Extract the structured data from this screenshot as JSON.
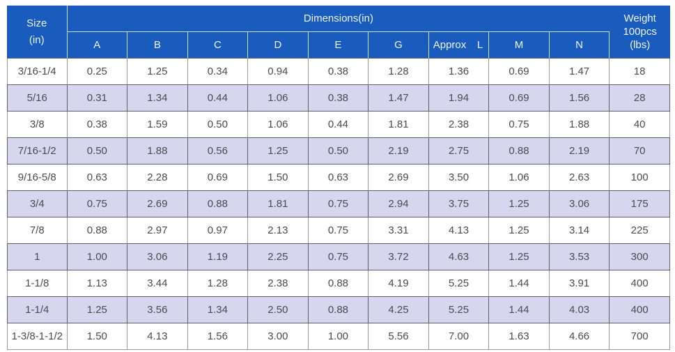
{
  "colors": {
    "header_bg": "#1A5BBE",
    "header_text": "#EFF4FC",
    "alt_row_bg": "#D8D6EF",
    "body_text": "#4A4A50",
    "grid_dark": "#5E5E68",
    "grid_light": "#9A9AA2",
    "page_bg": "#FFFFFF"
  },
  "table": {
    "header": {
      "size_line1": "Size",
      "size_line2": "(in)",
      "dimensions_label": "Dimensions(in)",
      "weight_line1": "Weight",
      "weight_line2": "100pcs",
      "weight_line3": "(lbs)",
      "dimension_columns": [
        {
          "label": "A"
        },
        {
          "label": "B"
        },
        {
          "label": "C"
        },
        {
          "label": "D"
        },
        {
          "label": "E"
        },
        {
          "label": "G"
        },
        {
          "label": "Approx",
          "label_right": "L"
        },
        {
          "label": "M"
        },
        {
          "label": "N"
        }
      ]
    }
  },
  "chart_data": {
    "type": "table",
    "title": "Dimensions(in)",
    "columns": [
      "Size (in)",
      "A",
      "B",
      "C",
      "D",
      "E",
      "G",
      "Approx L",
      "M",
      "N",
      "Weight 100pcs (lbs)"
    ],
    "rows": [
      [
        "3/16-1/4",
        "0.25",
        "1.25",
        "0.34",
        "0.94",
        "0.38",
        "1.28",
        "1.36",
        "0.69",
        "1.47",
        "18"
      ],
      [
        "5/16",
        "0.31",
        "1.34",
        "0.44",
        "1.06",
        "0.38",
        "1.47",
        "1.94",
        "0.69",
        "1.56",
        "28"
      ],
      [
        "3/8",
        "0.38",
        "1.59",
        "0.50",
        "1.06",
        "0.44",
        "1.81",
        "2.38",
        "0.75",
        "1.88",
        "40"
      ],
      [
        "7/16-1/2",
        "0.50",
        "1.88",
        "0.56",
        "1.25",
        "0.50",
        "2.19",
        "2.75",
        "0.88",
        "2.19",
        "70"
      ],
      [
        "9/16-5/8",
        "0.63",
        "2.28",
        "0.69",
        "1.50",
        "0.63",
        "2.69",
        "3.50",
        "1.06",
        "2.63",
        "100"
      ],
      [
        "3/4",
        "0.75",
        "2.69",
        "0.88",
        "1.81",
        "0.75",
        "2.94",
        "3.75",
        "1.25",
        "3.06",
        "175"
      ],
      [
        "7/8",
        "0.88",
        "2.97",
        "0.97",
        "2.13",
        "0.75",
        "3.31",
        "4.13",
        "1.25",
        "3.14",
        "225"
      ],
      [
        "1",
        "1.00",
        "3.06",
        "1.19",
        "2.25",
        "0.75",
        "3.72",
        "4.63",
        "1.25",
        "3.53",
        "300"
      ],
      [
        "1-1/8",
        "1.13",
        "3.44",
        "1.28",
        "2.38",
        "0.88",
        "4.19",
        "5.25",
        "1.44",
        "3.91",
        "400"
      ],
      [
        "1-1/4",
        "1.25",
        "3.56",
        "1.34",
        "2.50",
        "0.88",
        "4.25",
        "5.25",
        "1.44",
        "4.03",
        "400"
      ],
      [
        "1-3/8-1-1/2",
        "1.50",
        "4.13",
        "1.56",
        "3.00",
        "1.00",
        "5.56",
        "7.00",
        "1.63",
        "4.66",
        "700"
      ]
    ]
  }
}
